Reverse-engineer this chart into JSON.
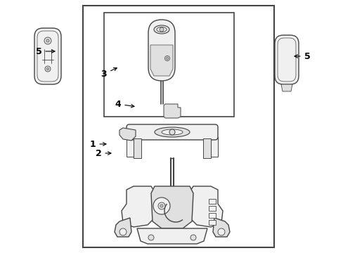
{
  "bg_color": "#ffffff",
  "line_color": "#444444",
  "lw": 1.0,
  "font_size": 9
}
